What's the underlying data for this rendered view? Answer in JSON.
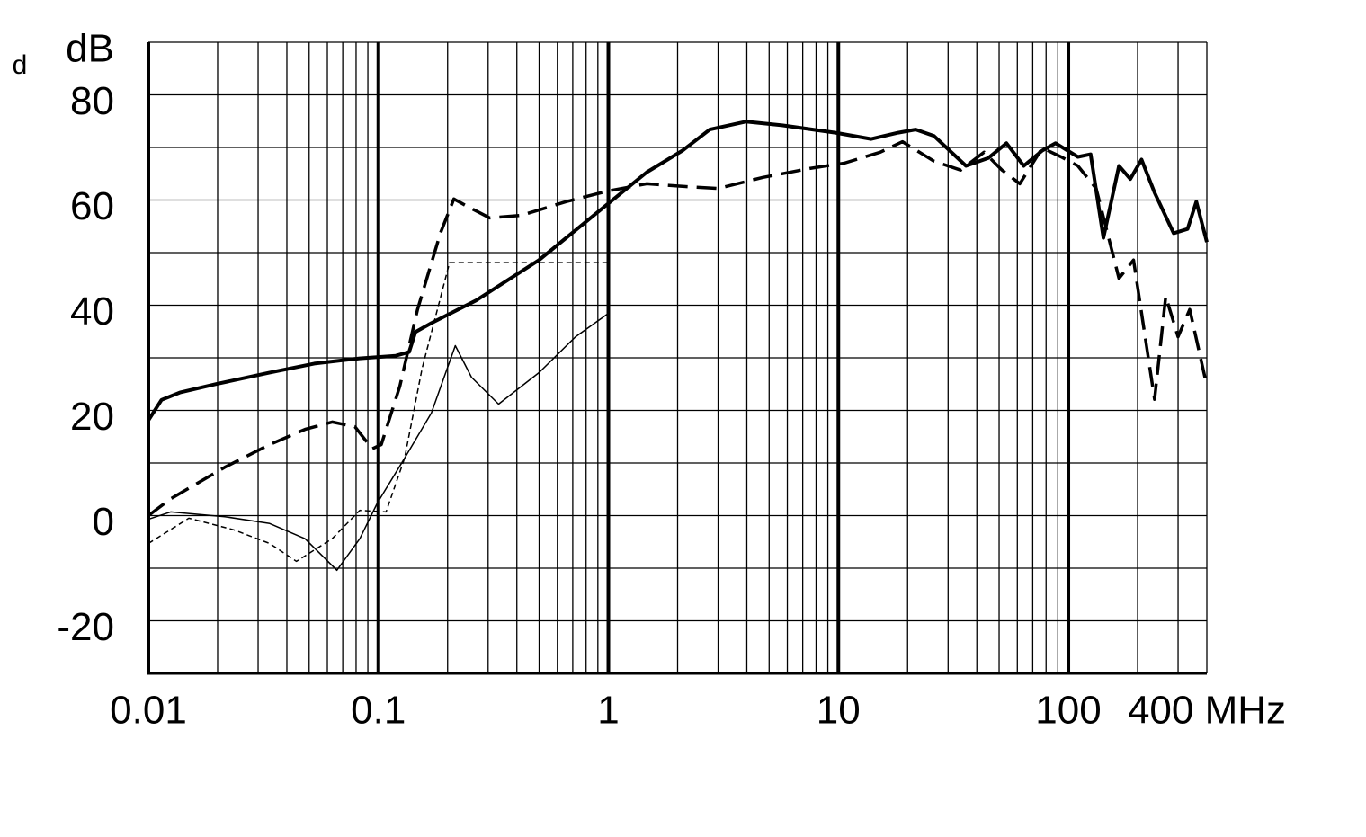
{
  "chart_data": {
    "type": "line",
    "annotation": "d",
    "x_log": true,
    "grid": true,
    "xlim": [
      0.01,
      400
    ],
    "ylim": [
      -30,
      90
    ],
    "xticks": [
      0.01,
      0.1,
      1,
      10,
      100,
      {
        "value": 400,
        "label": "400 MHz"
      }
    ],
    "x_minor_ticks": [
      0.02,
      0.03,
      0.04,
      0.05,
      0.06,
      0.07,
      0.08,
      0.09,
      0.2,
      0.3,
      0.4,
      0.5,
      0.6,
      0.7,
      0.8,
      0.9,
      2,
      3,
      4,
      5,
      6,
      7,
      8,
      9,
      20,
      30,
      40,
      50,
      60,
      70,
      80,
      90,
      200,
      300
    ],
    "yticks": [
      -20,
      0,
      20,
      40,
      60,
      80,
      {
        "value": 90,
        "label": "dB"
      }
    ],
    "y_minor_ticks": [
      -10,
      10,
      30,
      50,
      70
    ],
    "series": [
      {
        "color": "#000000",
        "width": 4,
        "dash": "solid",
        "x": [
          0.01,
          0.0114,
          0.0137,
          0.0196,
          0.0337,
          0.0527,
          0.0829,
          0.119,
          0.136,
          0.145,
          0.17,
          0.266,
          0.5,
          0.99,
          1.47,
          2.1,
          2.76,
          3.96,
          5.7,
          9.7,
          13.9,
          18.2,
          21.7,
          26,
          35.9,
          44.9,
          53.8,
          64,
          77,
          88,
          110,
          125,
          142,
          166,
          186,
          208,
          237,
          287,
          330,
          360,
          400
        ],
        "values": [
          18.1,
          22,
          23.4,
          25,
          27.2,
          28.9,
          29.9,
          30.4,
          31.1,
          34.9,
          36.6,
          40.9,
          48.6,
          59.2,
          65.3,
          69.4,
          73.4,
          74.9,
          74.2,
          72.8,
          71.6,
          72.8,
          73.4,
          72.2,
          66.5,
          68,
          70.8,
          66.5,
          69.4,
          70.8,
          68.2,
          68.7,
          52.8,
          66.5,
          64,
          67.7,
          61.4,
          53.7,
          54.5,
          59.7,
          52
        ]
      },
      {
        "color": "#000000",
        "width": 3.5,
        "dash": "dashed",
        "x": [
          0.01,
          0.0125,
          0.0215,
          0.0337,
          0.048,
          0.063,
          0.079,
          0.094,
          0.103,
          0.124,
          0.148,
          0.186,
          0.213,
          0.243,
          0.305,
          0.419,
          0.655,
          0.99,
          1.47,
          2.1,
          3.0,
          4.7,
          7.5,
          10.6,
          15.2,
          19.0,
          26,
          34,
          43,
          51.5,
          61.5,
          77,
          93,
          110,
          132,
          166,
          192,
          237,
          265,
          300,
          337,
          396
        ],
        "values": [
          0,
          3.2,
          9.2,
          13.5,
          16.4,
          17.8,
          16.9,
          12.7,
          13.5,
          24.6,
          39.2,
          53.7,
          60.2,
          58.8,
          56.6,
          57.1,
          59.7,
          61.7,
          63.1,
          62.6,
          62.2,
          64.3,
          66,
          67,
          69.1,
          71.1,
          67.4,
          65.7,
          69.1,
          65.7,
          63.1,
          69.9,
          68.2,
          66.5,
          62.2,
          45.1,
          48.6,
          22.1,
          41.7,
          34,
          39.2,
          25.5
        ]
      },
      {
        "color": "#000000",
        "width": 1.5,
        "dash": "solid",
        "x": [
          0.01,
          0.0125,
          0.0215,
          0.0337,
          0.048,
          0.066,
          0.083,
          0.099,
          0.13,
          0.17,
          0.216,
          0.254,
          0.333,
          0.5,
          0.72,
          0.99
        ],
        "values": [
          -0.7,
          0.7,
          -0.2,
          -1.5,
          -4.4,
          -10.4,
          -4.4,
          2.4,
          10.9,
          19.5,
          32.3,
          26.3,
          21.2,
          27.2,
          34,
          38.3
        ]
      },
      {
        "color": "#000000",
        "width": 1.5,
        "dash": "dashed",
        "x": [
          0.01,
          0.015,
          0.0235,
          0.0337,
          0.044,
          0.063,
          0.083,
          0.108,
          0.13,
          0.155,
          0.204,
          0.99
        ],
        "values": [
          -5.3,
          -0.5,
          -2.7,
          -5.3,
          -8.7,
          -4.4,
          1,
          0.7,
          10.9,
          28,
          48.1,
          48.1
        ]
      }
    ]
  }
}
